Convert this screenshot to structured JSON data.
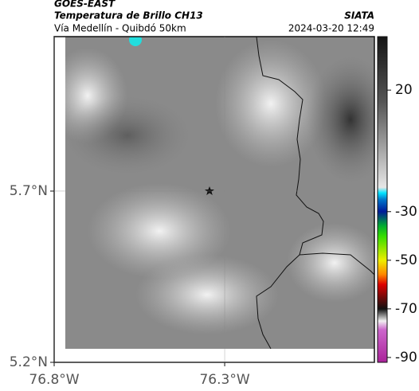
{
  "header": {
    "source": "GOES-EAST",
    "product": "Temperatura de Brillo CH13",
    "region": "Vía Medellín - Quibdó 50km",
    "brand": "SIATA",
    "datetime": "2024-03-20 12:49"
  },
  "map": {
    "lonlim": [
      -76.8,
      -75.861
    ],
    "latlim": [
      5.2,
      6.151
    ],
    "lonticks": [
      {
        "value": -76.8,
        "label": "76.8°W"
      },
      {
        "value": -76.3,
        "label": "76.3°W"
      }
    ],
    "latticks": [
      {
        "value": 5.2,
        "label": "5.2°N"
      },
      {
        "value": 5.7,
        "label": "5.7°N"
      }
    ]
  },
  "colorbar": {
    "lim": [
      -92,
      42
    ],
    "ticks": [
      20,
      -30,
      -50,
      -70,
      -90
    ]
  }
}
